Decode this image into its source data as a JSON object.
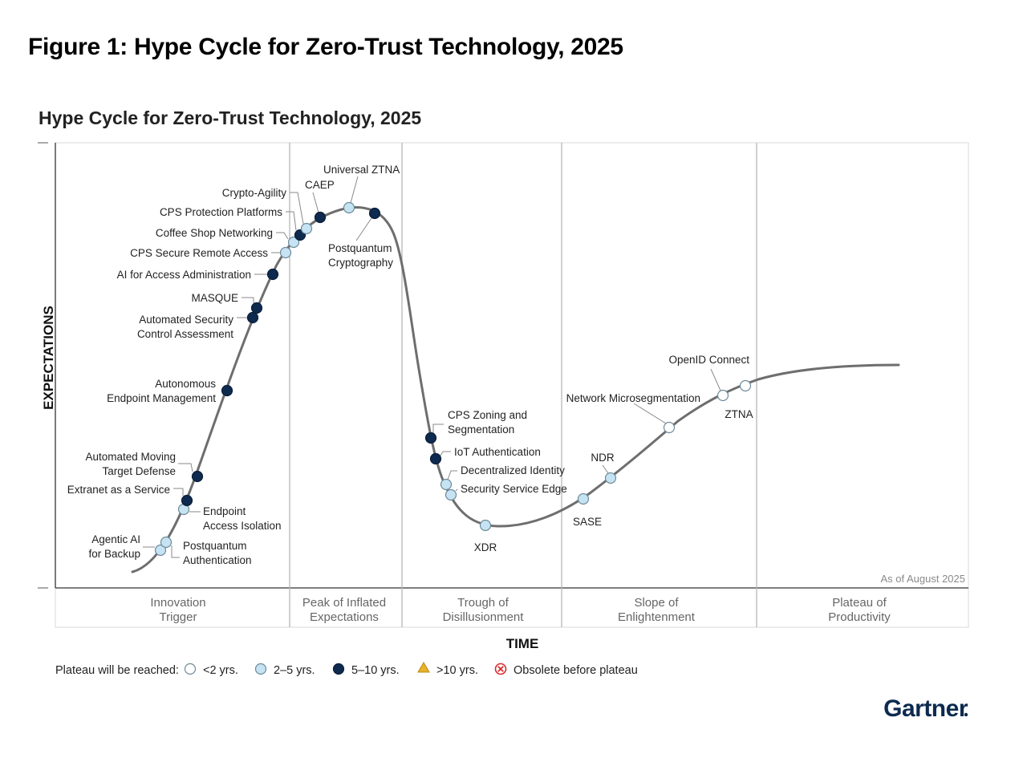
{
  "figure_title": "Figure 1: Hype Cycle for Zero-Trust Technology, 2025",
  "brand": "Gartner",
  "colors": {
    "lt2": "#ffffff",
    "y2to5": "#c5e3f2",
    "y5to10": "#0e2a4f",
    "gt10": "#e8b22a",
    "obsolete": "#d62d2d",
    "curve": "#6e6e6e",
    "grid": "#b7b7b7"
  },
  "chart_data": {
    "type": "hype-cycle",
    "title": "Hype Cycle for Zero-Trust Technology, 2025",
    "xlabel": "TIME",
    "ylabel": "EXPECTATIONS",
    "as_of": "As of August 2025",
    "phases": [
      {
        "lines": [
          "Innovation",
          "Trigger"
        ]
      },
      {
        "lines": [
          "Peak of Inflated",
          "Expectations"
        ]
      },
      {
        "lines": [
          "Trough of",
          "Disillusionment"
        ]
      },
      {
        "lines": [
          "Slope of",
          "Enlightenment"
        ]
      },
      {
        "lines": [
          "Plateau of",
          "Productivity"
        ]
      }
    ],
    "legend": {
      "title": "Plateau will be reached:",
      "items": [
        {
          "key": "lt2",
          "label": "<2 yrs."
        },
        {
          "key": "y2to5",
          "label": "2–5 yrs."
        },
        {
          "key": "y5to10",
          "label": "5–10 yrs."
        },
        {
          "key": "gt10",
          "label": ">10 yrs."
        },
        {
          "key": "obsolete",
          "label": "Obsolete before plateau"
        }
      ]
    },
    "technologies": [
      {
        "name": "Agentic AI for Backup",
        "lines": [
          "Agentic AI",
          "for Backup"
        ],
        "phase": "Innovation Trigger",
        "plateau": "y2to5"
      },
      {
        "name": "Postquantum Authentication",
        "lines": [
          "Postquantum",
          "Authentication"
        ],
        "phase": "Innovation Trigger",
        "plateau": "y2to5"
      },
      {
        "name": "Endpoint Access Isolation",
        "lines": [
          "Endpoint",
          "Access Isolation"
        ],
        "phase": "Innovation Trigger",
        "plateau": "y2to5"
      },
      {
        "name": "Extranet as a Service",
        "lines": [
          "Extranet as a Service"
        ],
        "phase": "Innovation Trigger",
        "plateau": "y5to10"
      },
      {
        "name": "Automated Moving Target Defense",
        "lines": [
          "Automated Moving",
          "Target Defense"
        ],
        "phase": "Innovation Trigger",
        "plateau": "y5to10"
      },
      {
        "name": "Autonomous Endpoint Management",
        "lines": [
          "Autonomous",
          "Endpoint Management"
        ],
        "phase": "Innovation Trigger",
        "plateau": "y5to10"
      },
      {
        "name": "Automated Security Control Assessment",
        "lines": [
          "Automated Security",
          "Control Assessment"
        ],
        "phase": "Innovation Trigger",
        "plateau": "y5to10"
      },
      {
        "name": "MASQUE",
        "lines": [
          "MASQUE"
        ],
        "phase": "Innovation Trigger",
        "plateau": "y5to10"
      },
      {
        "name": "AI for Access Administration",
        "lines": [
          "AI for Access Administration"
        ],
        "phase": "Innovation Trigger",
        "plateau": "y5to10"
      },
      {
        "name": "CPS Secure Remote Access",
        "lines": [
          "CPS Secure Remote Access"
        ],
        "phase": "Innovation Trigger",
        "plateau": "y2to5"
      },
      {
        "name": "Coffee Shop Networking",
        "lines": [
          "Coffee Shop Networking"
        ],
        "phase": "Peak of Inflated Expectations",
        "plateau": "y2to5"
      },
      {
        "name": "CPS Protection Platforms",
        "lines": [
          "CPS Protection Platforms"
        ],
        "phase": "Peak of Inflated Expectations",
        "plateau": "y5to10"
      },
      {
        "name": "Crypto-Agility",
        "lines": [
          "Crypto-Agility"
        ],
        "phase": "Peak of Inflated Expectations",
        "plateau": "y2to5"
      },
      {
        "name": "CAEP",
        "lines": [
          "CAEP"
        ],
        "phase": "Peak of Inflated Expectations",
        "plateau": "y5to10"
      },
      {
        "name": "Universal ZTNA",
        "lines": [
          "Universal ZTNA"
        ],
        "phase": "Peak of Inflated Expectations",
        "plateau": "y2to5"
      },
      {
        "name": "Postquantum Cryptography",
        "lines": [
          "Postquantum",
          "Cryptography"
        ],
        "phase": "Peak of Inflated Expectations",
        "plateau": "y5to10"
      },
      {
        "name": "CPS Zoning and Segmentation",
        "lines": [
          "CPS Zoning and",
          "Segmentation"
        ],
        "phase": "Trough of Disillusionment",
        "plateau": "y5to10"
      },
      {
        "name": "IoT Authentication",
        "lines": [
          "IoT Authentication"
        ],
        "phase": "Trough of Disillusionment",
        "plateau": "y5to10"
      },
      {
        "name": "Decentralized Identity",
        "lines": [
          "Decentralized Identity"
        ],
        "phase": "Trough of Disillusionment",
        "plateau": "y2to5"
      },
      {
        "name": "Security Service Edge",
        "lines": [
          "Security Service Edge"
        ],
        "phase": "Trough of Disillusionment",
        "plateau": "y2to5"
      },
      {
        "name": "XDR",
        "lines": [
          "XDR"
        ],
        "phase": "Trough of Disillusionment",
        "plateau": "y2to5"
      },
      {
        "name": "SASE",
        "lines": [
          "SASE"
        ],
        "phase": "Slope of Enlightenment",
        "plateau": "y2to5"
      },
      {
        "name": "NDR",
        "lines": [
          "NDR"
        ],
        "phase": "Slope of Enlightenment",
        "plateau": "y2to5"
      },
      {
        "name": "Network Microsegmentation",
        "lines": [
          "Network Microsegmentation"
        ],
        "phase": "Slope of Enlightenment",
        "plateau": "lt2"
      },
      {
        "name": "OpenID Connect",
        "lines": [
          "OpenID Connect"
        ],
        "phase": "Slope of Enlightenment",
        "plateau": "lt2"
      },
      {
        "name": "ZTNA",
        "lines": [
          "ZTNA"
        ],
        "phase": "Slope of Enlightenment",
        "plateau": "lt2"
      }
    ]
  }
}
